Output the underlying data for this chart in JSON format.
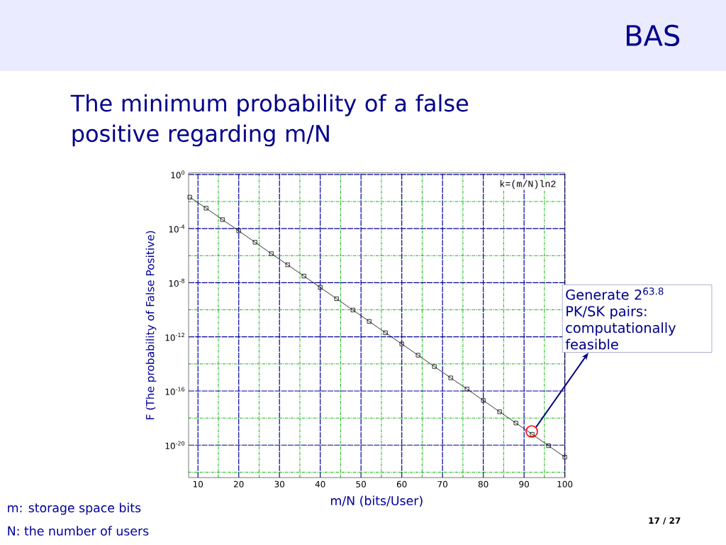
{
  "chart_data": {
    "type": "line",
    "title": "BAS",
    "subtitle": "The minimum probability of a false positive regarding m/N",
    "xlabel": "m/N (bits/User)",
    "ylabel": "F (The probability of False Positive)",
    "x": [
      8,
      12,
      16,
      20,
      24,
      28,
      32,
      36,
      40,
      44,
      48,
      52,
      56,
      60,
      64,
      68,
      72,
      76,
      80,
      84,
      88,
      92,
      96,
      100
    ],
    "series": [
      {
        "color": "#000000",
        "values": [
          0.021,
          0.0032,
          0.00046,
          6.8e-05,
          9.8e-06,
          1.4e-06,
          2.1e-07,
          3.1e-08,
          4.5e-09,
          6.6e-10,
          9.6e-11,
          1.4e-11,
          2e-12,
          3e-13,
          4.4e-14,
          6.4e-15,
          9.3e-16,
          1.4e-16,
          2e-17,
          2.9e-18,
          4.3e-19,
          6.3e-20,
          9.1e-21,
          1.3e-21
        ]
      }
    ],
    "log": "y",
    "grid": true,
    "marker": "square",
    "line_style": "solid",
    "xlim": [
      7.7,
      100
    ],
    "ylim": [
      4e-23,
      1.3
    ],
    "xticks": [
      10,
      {
        "value": 15,
        "label": null
      },
      20,
      {
        "value": 25,
        "label": null
      },
      30,
      {
        "value": 35,
        "label": null
      },
      40,
      {
        "value": 45,
        "label": null
      },
      50,
      {
        "value": 55,
        "label": null
      },
      60,
      {
        "value": 65,
        "label": null
      },
      70,
      {
        "value": 75,
        "label": null
      },
      80,
      {
        "value": 85,
        "label": null
      },
      90,
      {
        "value": 95,
        "label": null
      },
      100
    ],
    "yticks": [
      {
        "value": 1,
        "label": "10$^{0}$"
      },
      {
        "value": 0.01,
        "label": null
      },
      {
        "value": 0.0001,
        "label": "10$^{-4}$"
      },
      {
        "value": 1e-06,
        "label": null
      },
      {
        "value": 1e-08,
        "label": "10$^{-8}$"
      },
      {
        "value": 1e-10,
        "label": null
      },
      {
        "value": 1e-12,
        "label": "10$^{-12}$"
      },
      {
        "value": 1e-14,
        "label": null
      },
      {
        "value": 1e-16,
        "label": "10$^{-16}$"
      },
      {
        "value": 1e-18,
        "label": null
      },
      {
        "value": 1e-20,
        "label": "10$^{-20}$"
      },
      {
        "value": 1e-22,
        "label": null
      }
    ],
    "annotations": [
      "k=(m/N)ln2",
      "Generate 2$^{63.8}$ PK/SK pairs: computationally feasible",
      "m: storage space bits",
      "N: the number of users",
      "17 / 27"
    ]
  }
}
